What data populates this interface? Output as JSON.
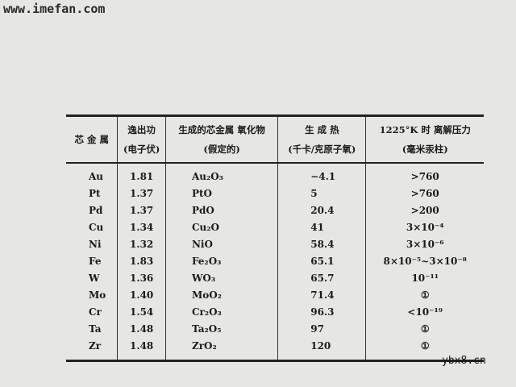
{
  "watermarks": {
    "top_left": "www.imefan.com",
    "bottom_right": "ybx8.cn"
  },
  "table": {
    "headers": [
      {
        "line1": "芯 金 属",
        "line2": ""
      },
      {
        "line1": "逸出功",
        "line2": "(电子伏)"
      },
      {
        "line1": "生成的芯金属 氧化物",
        "line2": "(假定的)"
      },
      {
        "line1": "生 成 热",
        "line2": "(千卡/克原子氧)"
      },
      {
        "line1": "1225°K 时 离解压力",
        "line2": "(毫米汞柱)"
      }
    ],
    "rows": [
      [
        "Au",
        "1.81",
        "Au₂O₃",
        "−4.1",
        ">760"
      ],
      [
        "Pt",
        "1.37",
        "PtO",
        "5",
        ">760"
      ],
      [
        "Pd",
        "1.37",
        "PdO",
        "20.4",
        ">200"
      ],
      [
        "Cu",
        "1.34",
        "Cu₂O",
        "41",
        "3×10⁻⁴"
      ],
      [
        "Ni",
        "1.32",
        "NiO",
        "58.4",
        "3×10⁻⁶"
      ],
      [
        "Fe",
        "1.83",
        "Fe₂O₃",
        "65.1",
        "8×10⁻⁵~3×10⁻⁸"
      ],
      [
        "W",
        "1.36",
        "WO₃",
        "65.7",
        "10⁻¹¹"
      ],
      [
        "Mo",
        "1.40",
        "MoO₂",
        "71.4",
        "①"
      ],
      [
        "Cr",
        "1.54",
        "Cr₂O₃",
        "96.3",
        "<10⁻¹⁹"
      ],
      [
        "Ta",
        "1.48",
        "Ta₂O₅",
        "97",
        "①"
      ],
      [
        "Zr",
        "1.48",
        "ZrO₂",
        "120",
        "①"
      ]
    ]
  }
}
